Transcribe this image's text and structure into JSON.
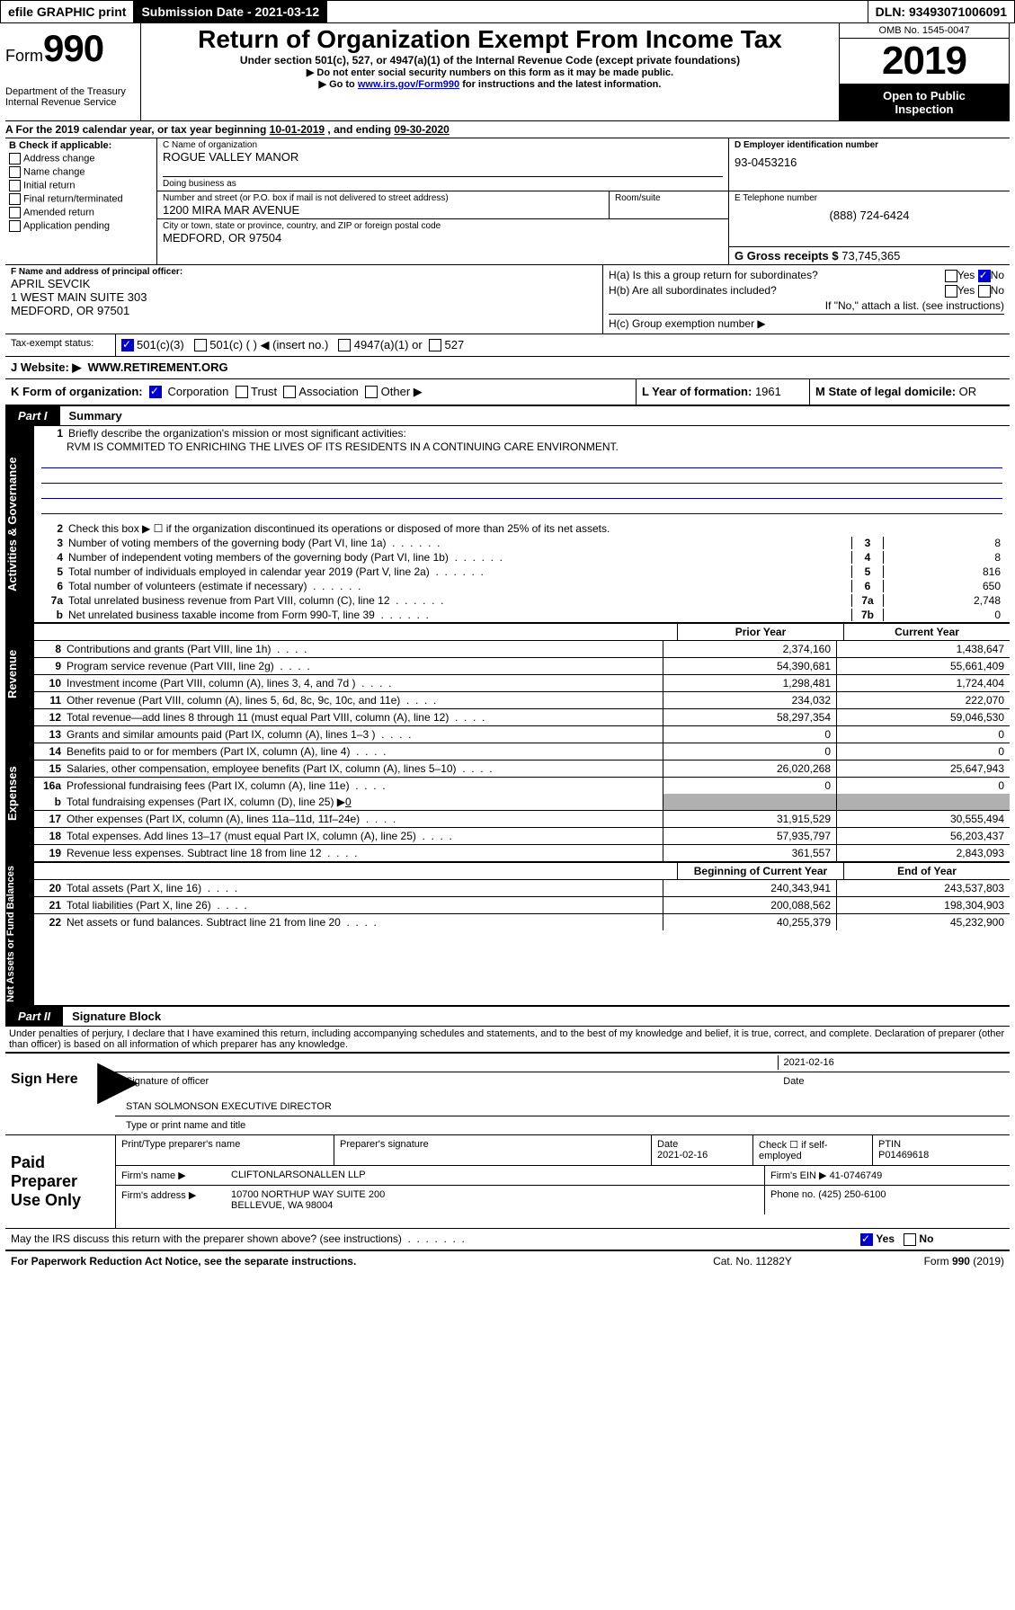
{
  "colors": {
    "link": "#0000cc",
    "black": "#000000",
    "shade": "#b0b0b0",
    "bg": "#ffffff"
  },
  "topbar": {
    "efile": "efile GRAPHIC print",
    "sub_label": "Submission Date - 2021-03-12",
    "dln": "DLN: 93493071006091"
  },
  "header": {
    "form_word": "Form",
    "form_num": "990",
    "dept": "Department of the Treasury",
    "irs": "Internal Revenue Service",
    "title": "Return of Organization Exempt From Income Tax",
    "sub1": "Under section 501(c), 527, or 4947(a)(1) of the Internal Revenue Code (except private foundations)",
    "sub2": "▶ Do not enter social security numbers on this form as it may be made public.",
    "sub3a": "▶ Go to ",
    "sub3_link": "www.irs.gov/Form990",
    "sub3b": " for instructions and the latest information.",
    "omb": "OMB No. 1545-0047",
    "year": "2019",
    "inspect1": "Open to Public",
    "inspect2": "Inspection"
  },
  "row_a": {
    "text_a": "A For the 2019 calendar year, or tax year beginning ",
    "begin": "10-01-2019",
    "mid": "  , and ending ",
    "end": "09-30-2020"
  },
  "col_b": {
    "title": "B Check if applicable:",
    "i1": "Address change",
    "i2": "Name change",
    "i3": "Initial return",
    "i4": "Final return/terminated",
    "i5": "Amended return",
    "i6": "Application pending"
  },
  "col_c": {
    "name_lbl": "C Name of organization",
    "name": "ROGUE VALLEY MANOR",
    "dba_lbl": "Doing business as",
    "street_lbl": "Number and street (or P.O. box if mail is not delivered to street address)",
    "street": "1200 MIRA MAR AVENUE",
    "room_lbl": "Room/suite",
    "city_lbl": "City or town, state or province, country, and ZIP or foreign postal code",
    "city": "MEDFORD, OR  97504"
  },
  "col_d": {
    "lbl": "D Employer identification number",
    "val": "93-0453216"
  },
  "col_e": {
    "lbl": "E Telephone number",
    "val": "(888) 724-6424"
  },
  "col_g": {
    "lbl": "G Gross receipts $ ",
    "val": "73,745,365"
  },
  "col_f": {
    "lbl": "F Name and address of principal officer:",
    "l1": "APRIL SEVCIK",
    "l2": "1 WEST MAIN SUITE 303",
    "l3": "MEDFORD, OR  97501"
  },
  "col_h": {
    "ha": "H(a)  Is this a group return for subordinates?",
    "hb": "H(b)  Are all subordinates included?",
    "hb2": "If \"No,\" attach a list. (see instructions)",
    "hc": "H(c)  Group exemption number ▶",
    "yes": "Yes",
    "no": "No"
  },
  "row_i": {
    "lbl": "Tax-exempt status:",
    "o1": "501(c)(3)",
    "o2": "501(c) (   ) ◀ (insert no.)",
    "o3": "4947(a)(1) or",
    "o4": "527"
  },
  "row_j": {
    "lbl": "J   Website: ▶",
    "val": "WWW.RETIREMENT.ORG"
  },
  "row_k": {
    "lbl": "K Form of organization:",
    "o1": "Corporation",
    "o2": "Trust",
    "o3": "Association",
    "o4": "Other ▶"
  },
  "row_l": {
    "lbl": "L Year of formation: ",
    "val": "1961"
  },
  "row_m": {
    "lbl": "M State of legal domicile: ",
    "val": "OR"
  },
  "part1": {
    "tab": "Part I",
    "title": "Summary"
  },
  "vtabs": {
    "gov": "Activities & Governance",
    "rev": "Revenue",
    "exp": "Expenses",
    "net": "Net Assets or Fund Balances"
  },
  "summary": {
    "q1": "Briefly describe the organization's mission or most significant activities:",
    "mission": "RVM IS COMMITED TO ENRICHING THE LIVES OF ITS RESIDENTS IN A CONTINUING CARE ENVIRONMENT.",
    "q2": "Check this box ▶ ☐  if the organization discontinued its operations or disposed of more than 25% of its net assets.",
    "lines": [
      {
        "n": "3",
        "t": "Number of voting members of the governing body (Part VI, line 1a)",
        "box": "3",
        "v": "8"
      },
      {
        "n": "4",
        "t": "Number of independent voting members of the governing body (Part VI, line 1b)",
        "box": "4",
        "v": "8"
      },
      {
        "n": "5",
        "t": "Total number of individuals employed in calendar year 2019 (Part V, line 2a)",
        "box": "5",
        "v": "816"
      },
      {
        "n": "6",
        "t": "Total number of volunteers (estimate if necessary)",
        "box": "6",
        "v": "650"
      },
      {
        "n": "7a",
        "t": "Total unrelated business revenue from Part VIII, column (C), line 12",
        "box": "7a",
        "v": "2,748"
      },
      {
        "n": "b",
        "t": "Net unrelated business taxable income from Form 990-T, line 39",
        "box": "7b",
        "v": "0"
      }
    ]
  },
  "fin_heads": {
    "prior": "Prior Year",
    "current": "Current Year",
    "beg": "Beginning of Current Year",
    "end": "End of Year"
  },
  "revenue": [
    {
      "n": "8",
      "t": "Contributions and grants (Part VIII, line 1h)",
      "p": "2,374,160",
      "c": "1,438,647"
    },
    {
      "n": "9",
      "t": "Program service revenue (Part VIII, line 2g)",
      "p": "54,390,681",
      "c": "55,661,409"
    },
    {
      "n": "10",
      "t": "Investment income (Part VIII, column (A), lines 3, 4, and 7d )",
      "p": "1,298,481",
      "c": "1,724,404"
    },
    {
      "n": "11",
      "t": "Other revenue (Part VIII, column (A), lines 5, 6d, 8c, 9c, 10c, and 11e)",
      "p": "234,032",
      "c": "222,070"
    },
    {
      "n": "12",
      "t": "Total revenue—add lines 8 through 11 (must equal Part VIII, column (A), line 12)",
      "p": "58,297,354",
      "c": "59,046,530"
    }
  ],
  "expenses": [
    {
      "n": "13",
      "t": "Grants and similar amounts paid (Part IX, column (A), lines 1–3 )",
      "p": "0",
      "c": "0"
    },
    {
      "n": "14",
      "t": "Benefits paid to or for members (Part IX, column (A), line 4)",
      "p": "0",
      "c": "0"
    },
    {
      "n": "15",
      "t": "Salaries, other compensation, employee benefits (Part IX, column (A), lines 5–10)",
      "p": "26,020,268",
      "c": "25,647,943"
    },
    {
      "n": "16a",
      "t": "Professional fundraising fees (Part IX, column (A), line 11e)",
      "p": "0",
      "c": "0"
    }
  ],
  "exp_b": {
    "n": "b",
    "t": "Total fundraising expenses (Part IX, column (D), line 25) ▶",
    "v": "0"
  },
  "expenses2": [
    {
      "n": "17",
      "t": "Other expenses (Part IX, column (A), lines 11a–11d, 11f–24e)",
      "p": "31,915,529",
      "c": "30,555,494"
    },
    {
      "n": "18",
      "t": "Total expenses. Add lines 13–17 (must equal Part IX, column (A), line 25)",
      "p": "57,935,797",
      "c": "56,203,437"
    },
    {
      "n": "19",
      "t": "Revenue less expenses. Subtract line 18 from line 12",
      "p": "361,557",
      "c": "2,843,093"
    }
  ],
  "netassets": [
    {
      "n": "20",
      "t": "Total assets (Part X, line 16)",
      "p": "240,343,941",
      "c": "243,537,803"
    },
    {
      "n": "21",
      "t": "Total liabilities (Part X, line 26)",
      "p": "200,088,562",
      "c": "198,304,903"
    },
    {
      "n": "22",
      "t": "Net assets or fund balances. Subtract line 21 from line 20",
      "p": "40,255,379",
      "c": "45,232,900"
    }
  ],
  "part2": {
    "tab": "Part II",
    "title": "Signature Block"
  },
  "perjury": "Under penalties of perjury, I declare that I have examined this return, including accompanying schedules and statements, and to the best of my knowledge and belief, it is true, correct, and complete. Declaration of preparer (other than officer) is based on all information of which preparer has any knowledge.",
  "sign": {
    "here": "Sign Here",
    "sig_lbl": "Signature of officer",
    "date": "2021-02-16",
    "date_lbl": "Date",
    "name": "STAN SOLMONSON  EXECUTIVE DIRECTOR",
    "name_lbl": "Type or print name and title"
  },
  "prep": {
    "title": "Paid Preparer Use Only",
    "h1": "Print/Type preparer's name",
    "h2": "Preparer's signature",
    "h3": "Date",
    "h3v": "2021-02-16",
    "h4": "Check ☐ if self-employed",
    "h5": "PTIN",
    "h5v": "P01469618",
    "firm_lbl": "Firm's name      ▶",
    "firm": "CLIFTONLARSONALLEN LLP",
    "ein_lbl": "Firm's EIN ▶",
    "ein": "41-0746749",
    "addr_lbl": "Firm's address ▶",
    "addr1": "10700 NORTHUP WAY SUITE 200",
    "addr2": "BELLEVUE, WA  98004",
    "phone_lbl": "Phone no. ",
    "phone": "(425) 250-6100"
  },
  "discuss": {
    "q": "May the IRS discuss this return with the preparer shown above? (see instructions)",
    "yes": "Yes",
    "no": "No"
  },
  "footer": {
    "l": "For Paperwork Reduction Act Notice, see the separate instructions.",
    "m": "Cat. No. 11282Y",
    "r": "Form 990 (2019)"
  }
}
